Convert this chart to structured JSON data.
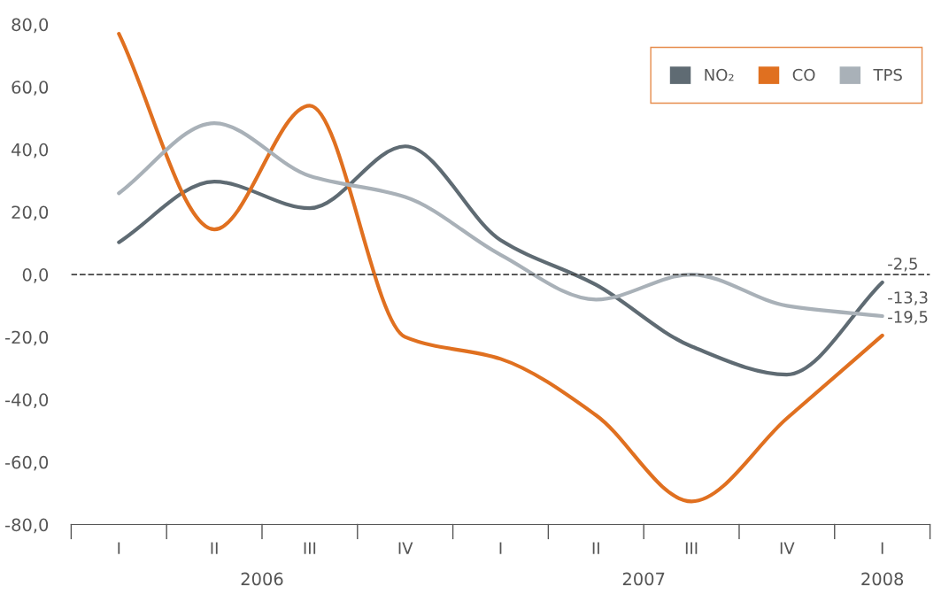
{
  "chart_data": {
    "type": "line",
    "categories": [
      "I",
      "II",
      "III",
      "IV",
      "I",
      "II",
      "III",
      "IV",
      "I"
    ],
    "series": [
      {
        "name": "NO₂",
        "color": "#5f6b73",
        "values": [
          10.3,
          29.7,
          21.2,
          41,
          11,
          -3.3,
          -23,
          -32,
          -2.5
        ],
        "value_labels": [
          null,
          null,
          null,
          null,
          null,
          null,
          null,
          null,
          "-2,5"
        ]
      },
      {
        "name": "CO",
        "color": "#e07020",
        "values": [
          77,
          14.4,
          54,
          -20,
          -27,
          -45,
          -72.6,
          -46,
          -19.5
        ],
        "value_labels": [
          null,
          null,
          null,
          null,
          null,
          null,
          null,
          null,
          "-19,5"
        ]
      },
      {
        "name": "TPS",
        "color": "#a9b1b8",
        "values": [
          26,
          48.4,
          31.5,
          24.8,
          6.3,
          -8,
          0,
          -10,
          -13.3
        ],
        "value_labels": [
          null,
          null,
          null,
          null,
          null,
          null,
          null,
          null,
          "-13,3"
        ]
      }
    ],
    "ylim": [
      -80,
      80
    ],
    "yticks": [
      {
        "value": -80,
        "label": "-80,0"
      },
      {
        "value": -60,
        "label": "-60,0"
      },
      {
        "value": -40,
        "label": "-40,0"
      },
      {
        "value": -20,
        "label": "-20,0"
      },
      {
        "value": 0,
        "label": "0,0"
      },
      {
        "value": 20,
        "label": "20,0"
      },
      {
        "value": 40,
        "label": "40,0"
      },
      {
        "value": 60,
        "label": "60,0"
      },
      {
        "value": 80,
        "label": "80,0"
      }
    ],
    "ref_lines": [
      {
        "axis": "y",
        "value": 0,
        "color": "#444444",
        "line_style": "dashed"
      }
    ],
    "annotations": [
      "2006",
      "2007",
      "2008"
    ],
    "grid": false,
    "legend": "top right",
    "marker": "none",
    "line_style": "solid"
  }
}
